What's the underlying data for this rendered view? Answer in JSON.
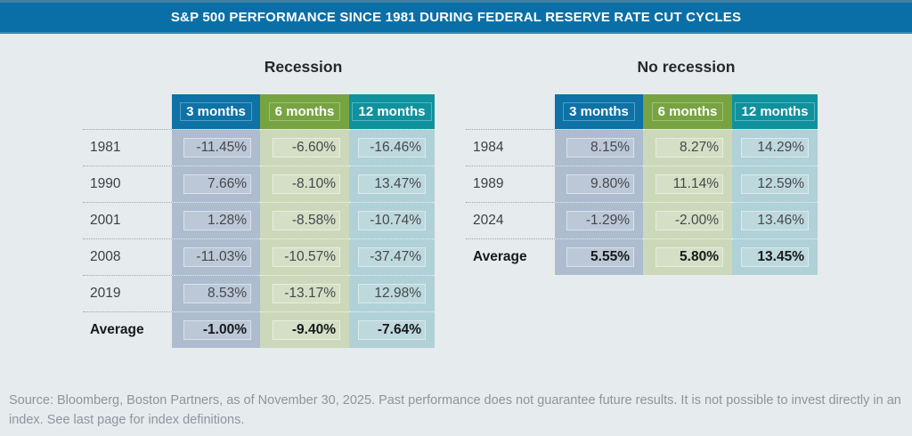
{
  "title": "S&P 500 PERFORMANCE SINCE 1981 DURING FEDERAL RESERVE RATE CUT CYCLES",
  "tables": [
    {
      "title": "Recession",
      "columns": [
        "3 months",
        "6 months",
        "12 months"
      ],
      "rows": [
        {
          "label": "1981",
          "values": [
            "-11.45%",
            "-6.60%",
            "-16.46%"
          ]
        },
        {
          "label": "1990",
          "values": [
            "7.66%",
            "-8.10%",
            "13.47%"
          ]
        },
        {
          "label": "2001",
          "values": [
            "1.28%",
            "-8.58%",
            "-10.74%"
          ]
        },
        {
          "label": "2008",
          "values": [
            "-11.03%",
            "-10.57%",
            "-37.47%"
          ]
        },
        {
          "label": "2019",
          "values": [
            "8.53%",
            "-13.17%",
            "12.98%"
          ]
        },
        {
          "label": "Average",
          "values": [
            "-1.00%",
            "-9.40%",
            "-7.64%"
          ]
        }
      ]
    },
    {
      "title": "No recession",
      "columns": [
        "3 months",
        "6 months",
        "12 months"
      ],
      "rows": [
        {
          "label": "1984",
          "values": [
            "8.15%",
            "8.27%",
            "14.29%"
          ]
        },
        {
          "label": "1989",
          "values": [
            "9.80%",
            "11.14%",
            "12.59%"
          ]
        },
        {
          "label": "2024",
          "values": [
            "-1.29%",
            "-2.00%",
            "13.46%"
          ]
        },
        {
          "label": "Average",
          "values": [
            "5.55%",
            "5.80%",
            "13.45%"
          ]
        }
      ]
    }
  ],
  "footer": "Source: Bloomberg, Boston Partners, as of November 30, 2025. Past performance does not guarantee future results. It is not possible to invest directly in an index. See last page for index definitions.",
  "colors": {
    "title_bar": "#0a6fa6",
    "header_blue": "#0e72a6",
    "header_green": "#77a441",
    "header_teal": "#10929e",
    "tint_blue": "#aebccf",
    "tint_green": "#ccd8ba",
    "tint_teal": "#b0d1d7",
    "background": "#e6ebee",
    "footer_text": "#8e959c"
  },
  "chart_data": [
    {
      "type": "table",
      "title": "Recession",
      "categories": [
        "3 months",
        "6 months",
        "12 months"
      ],
      "rows": [
        {
          "label": "1981",
          "values": [
            -11.45,
            -6.6,
            -16.46
          ]
        },
        {
          "label": "1990",
          "values": [
            7.66,
            -8.1,
            13.47
          ]
        },
        {
          "label": "2001",
          "values": [
            1.28,
            -8.58,
            -10.74
          ]
        },
        {
          "label": "2008",
          "values": [
            -11.03,
            -10.57,
            -37.47
          ]
        },
        {
          "label": "2019",
          "values": [
            8.53,
            -13.17,
            12.98
          ]
        },
        {
          "label": "Average",
          "values": [
            -1.0,
            -9.4,
            -7.64
          ]
        }
      ],
      "unit": "%"
    },
    {
      "type": "table",
      "title": "No recession",
      "categories": [
        "3 months",
        "6 months",
        "12 months"
      ],
      "rows": [
        {
          "label": "1984",
          "values": [
            8.15,
            8.27,
            14.29
          ]
        },
        {
          "label": "1989",
          "values": [
            9.8,
            11.14,
            12.59
          ]
        },
        {
          "label": "2024",
          "values": [
            -1.29,
            -2.0,
            13.46
          ]
        },
        {
          "label": "Average",
          "values": [
            5.55,
            5.8,
            13.45
          ]
        }
      ],
      "unit": "%"
    }
  ]
}
